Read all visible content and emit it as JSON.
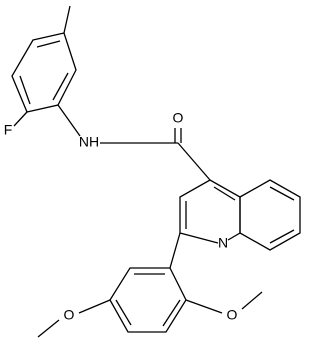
{
  "atoms": [
    {
      "label": "O"
    },
    {
      "label": "NH"
    },
    {
      "label": "F"
    },
    {
      "label": "N"
    },
    {
      "label": "O"
    },
    {
      "label": "O"
    }
  ]
}
